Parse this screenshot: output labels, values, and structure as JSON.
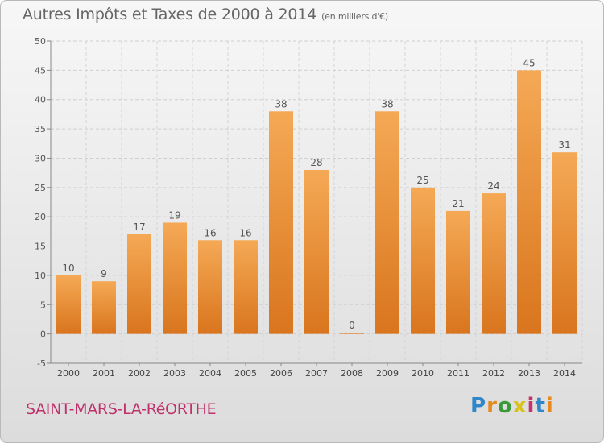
{
  "title": "Autres Impôts et Taxes de 2000 à 2014",
  "unit": "(en milliers d'€)",
  "commune": "SAINT-MARS-LA-RéORTHE",
  "logo": {
    "letters": [
      "P",
      "r",
      "o",
      "x",
      "i",
      "t",
      "i"
    ]
  },
  "colors": {
    "bar_top": "#f5a955",
    "bar_bottom": "#d9751e",
    "commune": "#c0306a"
  },
  "chart_data": {
    "type": "bar",
    "categories": [
      "2000",
      "2001",
      "2002",
      "2003",
      "2004",
      "2005",
      "2006",
      "2007",
      "2008",
      "2009",
      "2010",
      "2011",
      "2012",
      "2013",
      "2014"
    ],
    "values": [
      10,
      9,
      17,
      19,
      16,
      16,
      38,
      28,
      0,
      38,
      25,
      21,
      24,
      45,
      31
    ],
    "ylim": [
      -5,
      50
    ],
    "yticks": [
      -5,
      0,
      5,
      10,
      15,
      20,
      25,
      30,
      35,
      40,
      45,
      50
    ],
    "grid": true,
    "data_labels": true
  }
}
